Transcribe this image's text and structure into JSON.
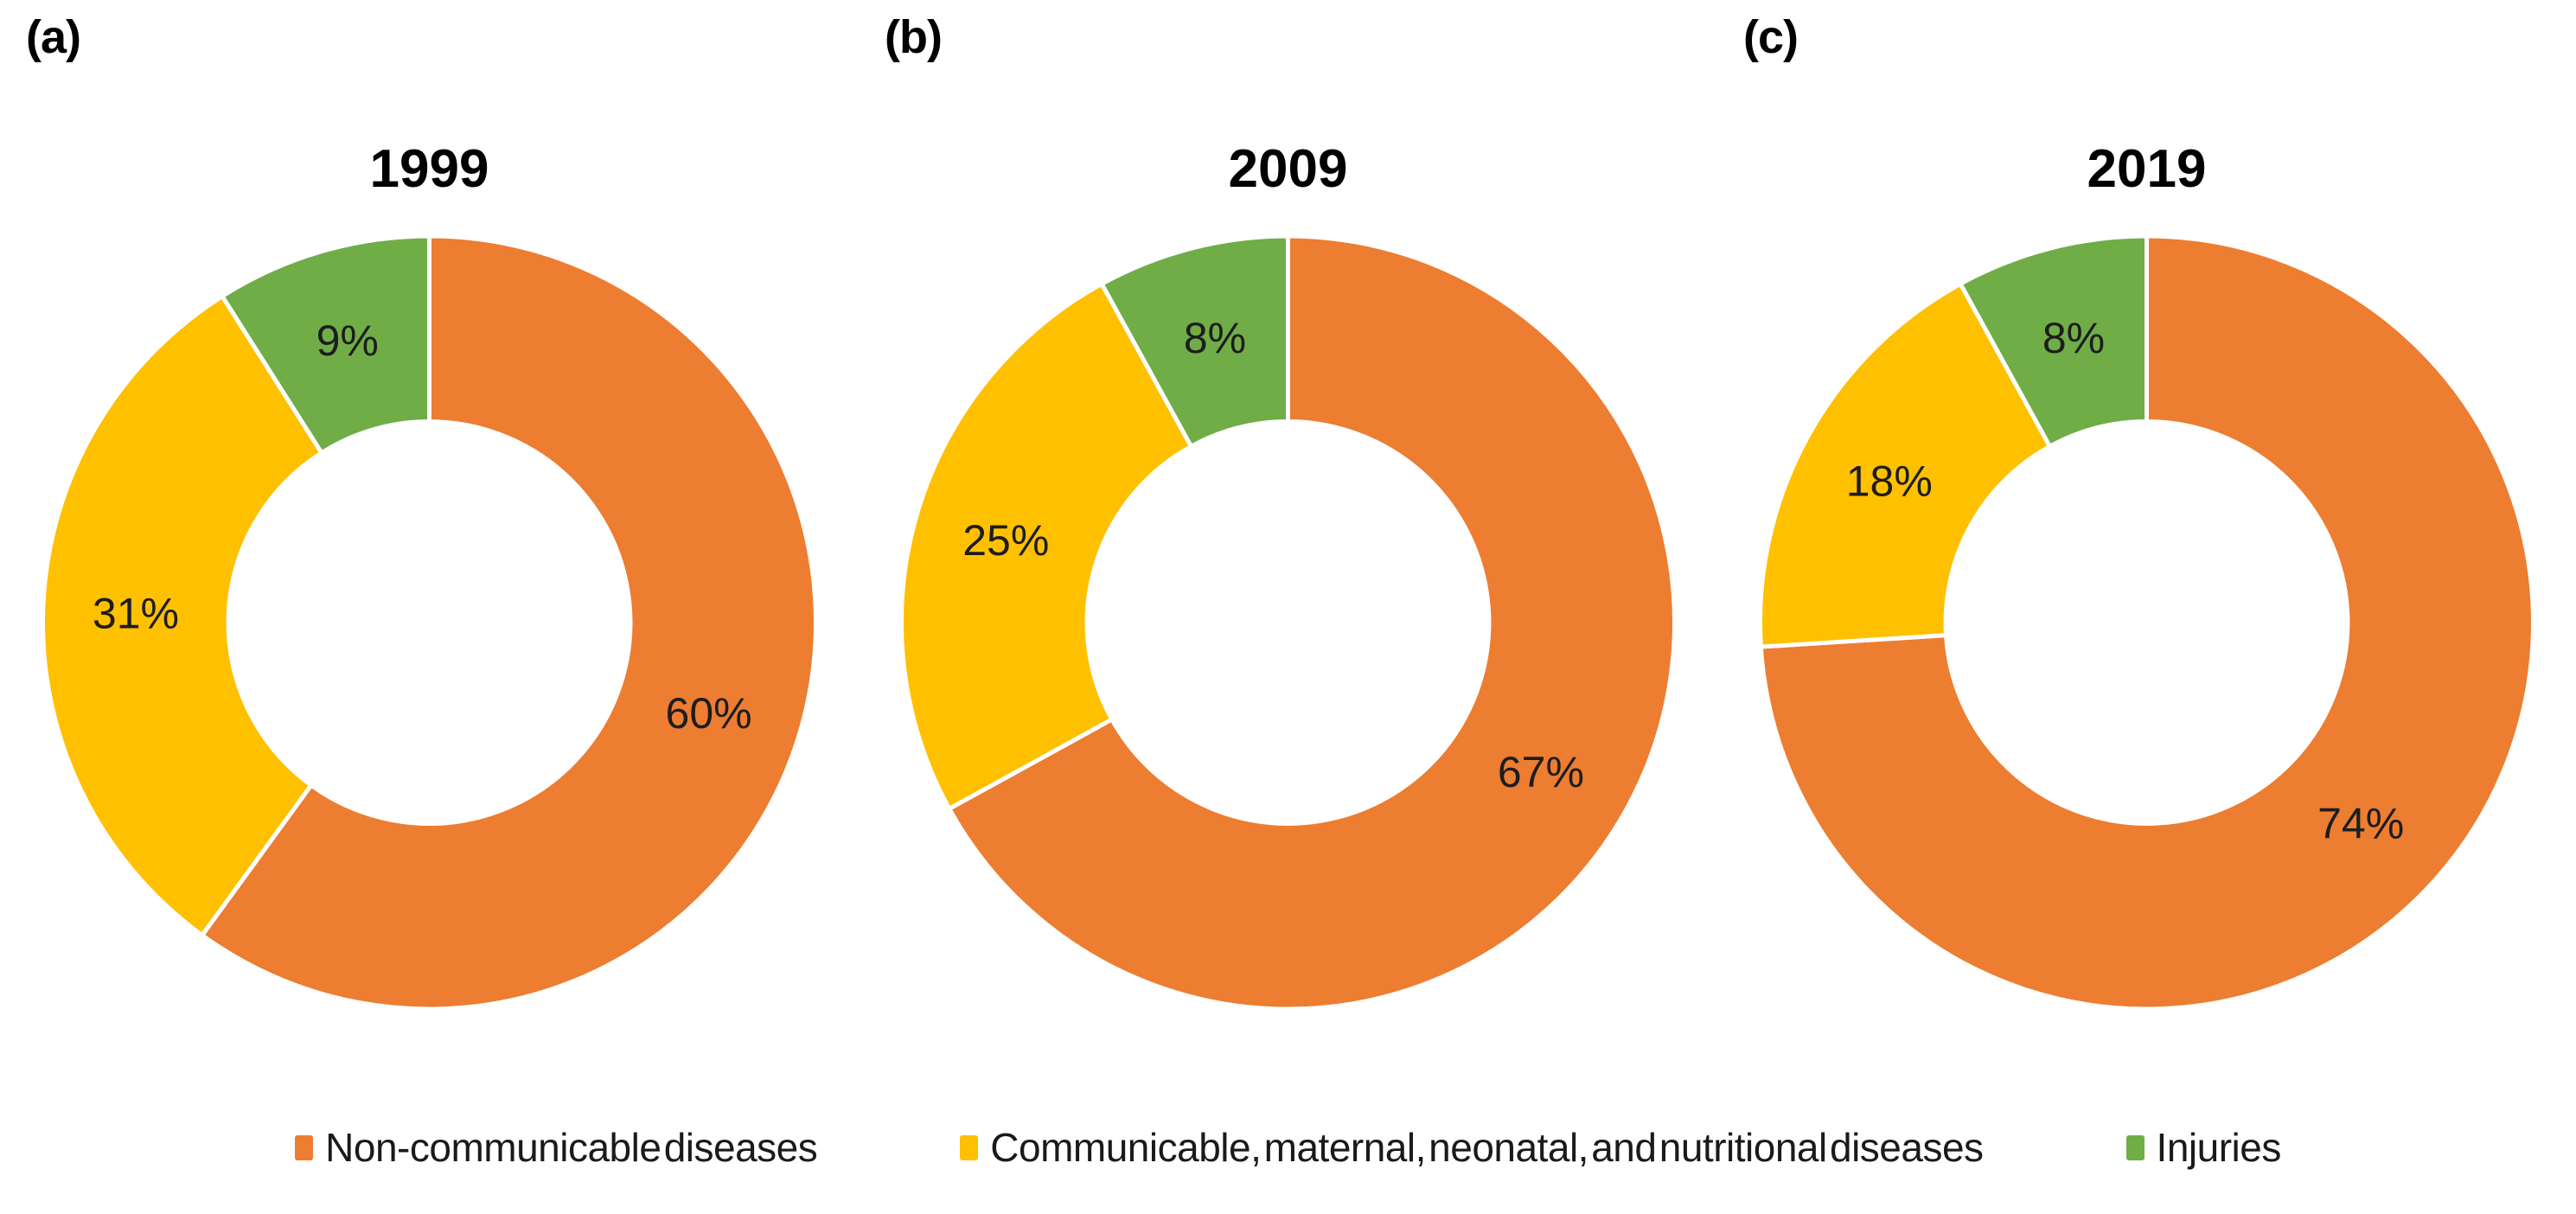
{
  "figure": {
    "background": "#ffffff",
    "panels": [
      {
        "tag": "(a)"
      },
      {
        "tag": "(b)"
      },
      {
        "tag": "(c)"
      }
    ]
  },
  "legend": {
    "position": "bottom",
    "items": [
      {
        "label": "Non-communicable diseases",
        "color": "#ED7D31"
      },
      {
        "label": "Communicable, maternal, neonatal, and nutritional diseases",
        "color": "#FFC000"
      },
      {
        "label": "Injuries",
        "color": "#70AD47"
      }
    ]
  },
  "chart_data": [
    {
      "type": "pie",
      "subtype": "donut",
      "title": "1999",
      "categories": [
        "Non-communicable diseases",
        "Communicable, maternal, neonatal, and nutritional diseases",
        "Injuries"
      ],
      "values": [
        60,
        31,
        9
      ],
      "labels": [
        "60%",
        "31%",
        "9%"
      ],
      "colors": [
        "#ED7D31",
        "#FFC000",
        "#70AD47"
      ],
      "unit": "%",
      "start_angle_deg": 0,
      "direction": "clockwise",
      "inner_radius_ratio": 0.52,
      "separator_color": "#ffffff",
      "legend_position": "bottom"
    },
    {
      "type": "pie",
      "subtype": "donut",
      "title": "2009",
      "categories": [
        "Non-communicable diseases",
        "Communicable, maternal, neonatal, and nutritional diseases",
        "Injuries"
      ],
      "values": [
        67,
        25,
        8
      ],
      "labels": [
        "67%",
        "25%",
        "8%"
      ],
      "colors": [
        "#ED7D31",
        "#FFC000",
        "#70AD47"
      ],
      "unit": "%",
      "start_angle_deg": 0,
      "direction": "clockwise",
      "inner_radius_ratio": 0.52,
      "separator_color": "#ffffff",
      "legend_position": "bottom"
    },
    {
      "type": "pie",
      "subtype": "donut",
      "title": "2019",
      "categories": [
        "Non-communicable diseases",
        "Communicable, maternal, neonatal, and nutritional diseases",
        "Injuries"
      ],
      "values": [
        74,
        18,
        8
      ],
      "labels": [
        "74%",
        "18%",
        "8%"
      ],
      "colors": [
        "#ED7D31",
        "#FFC000",
        "#70AD47"
      ],
      "unit": "%",
      "start_angle_deg": 0,
      "direction": "clockwise",
      "inner_radius_ratio": 0.52,
      "separator_color": "#ffffff",
      "legend_position": "bottom"
    }
  ]
}
